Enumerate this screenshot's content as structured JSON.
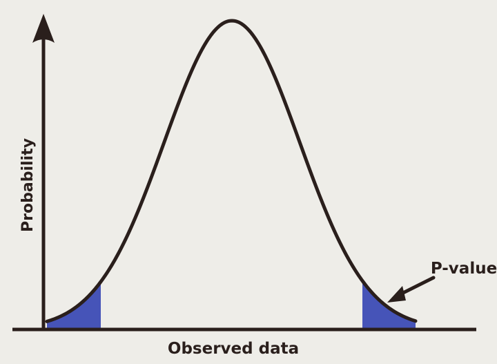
{
  "diagram": {
    "y_axis_label": "Probability",
    "x_axis_label": "Observed data",
    "callout_label": "P-value",
    "colors": {
      "background": "#eeede8",
      "curve": "#2a1f1c",
      "axes": "#2a1f1c",
      "tail_fill": "#4654b8",
      "text": "#2a1f1c"
    },
    "shapes": {
      "curve": "bell-shaped normal distribution curve",
      "shaded_regions": [
        "left-tail",
        "right-tail"
      ],
      "callout": "arrow pointing at right tail"
    }
  }
}
